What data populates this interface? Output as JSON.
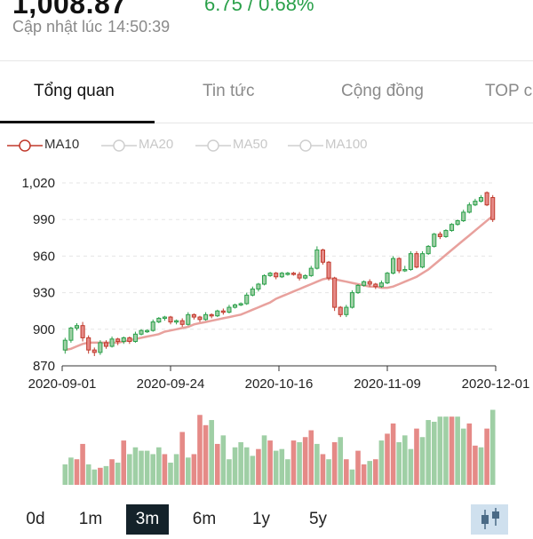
{
  "header": {
    "price": "1,008.87",
    "change": "6.75 / 0.68%",
    "updated_label": "Cập nhật lúc",
    "updated_time": "14:50:39"
  },
  "tabs": [
    {
      "label": "Tổng quan",
      "active": true
    },
    {
      "label": "Tin tức",
      "active": false
    },
    {
      "label": "Cộng đồng",
      "active": false
    },
    {
      "label": "TOP c",
      "active": false
    }
  ],
  "legend": [
    {
      "label": "MA10",
      "active": true,
      "color": "#c0392b"
    },
    {
      "label": "MA20",
      "active": false,
      "color": "#c8c8c8"
    },
    {
      "label": "MA50",
      "active": false,
      "color": "#c8c8c8"
    },
    {
      "label": "MA100",
      "active": false,
      "color": "#c8c8c8"
    }
  ],
  "timeframes": [
    {
      "label": "0d",
      "active": false
    },
    {
      "label": "1m",
      "active": false
    },
    {
      "label": "3m",
      "active": true
    },
    {
      "label": "6m",
      "active": false
    },
    {
      "label": "1y",
      "active": false
    },
    {
      "label": "5y",
      "active": false
    }
  ],
  "chart_toggle_icon": "candlestick-icon",
  "colors": {
    "up": "#2aa04a",
    "up_fill": "#9fcfa5",
    "down": "#c0392b",
    "down_fill": "#e58a87",
    "ma": "#e8a19d",
    "grid": "#e5e5e5"
  },
  "chart_data": {
    "type": "candlestick",
    "ylim": [
      870,
      1020
    ],
    "y_ticks": [
      "1,020",
      "990",
      "960",
      "930",
      "900",
      "870"
    ],
    "x_ticks": [
      "2020-09-01",
      "2020-09-24",
      "2020-10-16",
      "2020-11-09",
      "2020-12-01"
    ],
    "ma_label": "MA10",
    "candles": [
      [
        883,
        891,
        880,
        893
      ],
      [
        891,
        901,
        889,
        902
      ],
      [
        901,
        903,
        899,
        905
      ],
      [
        903,
        893,
        890,
        906
      ],
      [
        893,
        883,
        880,
        895
      ],
      [
        883,
        881,
        878,
        885
      ],
      [
        881,
        889,
        879,
        891
      ],
      [
        889,
        886,
        884,
        891
      ],
      [
        886,
        892,
        885,
        894
      ],
      [
        892,
        890,
        887,
        893
      ],
      [
        890,
        893,
        888,
        894
      ],
      [
        893,
        890,
        888,
        894
      ],
      [
        890,
        896,
        889,
        898
      ],
      [
        896,
        899,
        895,
        900
      ],
      [
        899,
        899,
        897,
        900
      ],
      [
        899,
        906,
        898,
        908
      ],
      [
        906,
        909,
        905,
        910
      ],
      [
        909,
        910,
        907,
        911
      ],
      [
        910,
        906,
        904,
        911
      ],
      [
        906,
        907,
        904,
        908
      ],
      [
        907,
        904,
        902,
        909
      ],
      [
        904,
        912,
        903,
        914
      ],
      [
        912,
        910,
        908,
        913
      ],
      [
        910,
        908,
        906,
        911
      ],
      [
        908,
        912,
        907,
        914
      ],
      [
        912,
        911,
        909,
        913
      ],
      [
        911,
        915,
        910,
        916
      ],
      [
        915,
        914,
        912,
        917
      ],
      [
        914,
        918,
        913,
        920
      ],
      [
        918,
        920,
        917,
        921
      ],
      [
        920,
        921,
        919,
        922
      ],
      [
        921,
        928,
        920,
        930
      ],
      [
        928,
        933,
        927,
        935
      ],
      [
        933,
        937,
        931,
        938
      ],
      [
        937,
        944,
        936,
        945
      ],
      [
        944,
        946,
        943,
        947
      ],
      [
        946,
        943,
        941,
        947
      ],
      [
        943,
        946,
        942,
        947
      ],
      [
        946,
        946,
        944,
        947
      ],
      [
        946,
        945,
        944,
        947
      ],
      [
        945,
        942,
        940,
        947
      ],
      [
        942,
        944,
        941,
        945
      ],
      [
        944,
        950,
        943,
        952
      ],
      [
        950,
        965,
        949,
        968
      ],
      [
        965,
        955,
        953,
        966
      ],
      [
        955,
        942,
        940,
        956
      ],
      [
        942,
        918,
        915,
        943
      ],
      [
        918,
        912,
        910,
        919
      ],
      [
        912,
        918,
        910,
        920
      ],
      [
        918,
        930,
        917,
        932
      ],
      [
        930,
        936,
        929,
        937
      ],
      [
        936,
        939,
        935,
        940
      ],
      [
        939,
        937,
        935,
        941
      ],
      [
        937,
        935,
        933,
        938
      ],
      [
        935,
        938,
        934,
        940
      ],
      [
        938,
        946,
        937,
        947
      ],
      [
        946,
        958,
        945,
        960
      ],
      [
        958,
        948,
        946,
        959
      ],
      [
        948,
        949,
        947,
        952
      ],
      [
        949,
        962,
        948,
        964
      ],
      [
        962,
        951,
        950,
        964
      ],
      [
        951,
        962,
        950,
        964
      ],
      [
        962,
        968,
        961,
        969
      ],
      [
        968,
        978,
        967,
        979
      ],
      [
        978,
        976,
        974,
        980
      ],
      [
        976,
        981,
        975,
        982
      ],
      [
        981,
        986,
        980,
        987
      ],
      [
        986,
        989,
        985,
        990
      ],
      [
        989,
        996,
        988,
        998
      ],
      [
        996,
        1002,
        995,
        1004
      ],
      [
        1002,
        1005,
        1001,
        1007
      ],
      [
        1005,
        1008,
        1004,
        1010
      ],
      [
        1012,
        1002,
        1001,
        1013
      ],
      [
        1008,
        990,
        988,
        1010
      ]
    ],
    "ma10": [
      883,
      884,
      886,
      888,
      889,
      889,
      889,
      889,
      889,
      889,
      890,
      891,
      892,
      893,
      894,
      895,
      896,
      898,
      899,
      900,
      901,
      902,
      904,
      905,
      906,
      907,
      908,
      909,
      910,
      911,
      912,
      914,
      916,
      918,
      920,
      922,
      925,
      927,
      929,
      931,
      933,
      935,
      937,
      939,
      941,
      942,
      941,
      940,
      939,
      938,
      937,
      936,
      935,
      935,
      934,
      934,
      935,
      937,
      939,
      941,
      943,
      946,
      949,
      953,
      957,
      961,
      965,
      969,
      973,
      977,
      981,
      985,
      989,
      993
    ],
    "volume": [
      0.24,
      0.32,
      0.3,
      0.48,
      0.24,
      0.18,
      0.2,
      0.22,
      0.3,
      0.26,
      0.52,
      0.36,
      0.44,
      0.4,
      0.4,
      0.36,
      0.44,
      0.36,
      0.26,
      0.36,
      0.62,
      0.32,
      0.36,
      0.82,
      0.7,
      0.76,
      0.48,
      0.58,
      0.3,
      0.44,
      0.5,
      0.44,
      0.34,
      0.42,
      0.58,
      0.52,
      0.4,
      0.42,
      0.3,
      0.52,
      0.5,
      0.56,
      0.64,
      0.48,
      0.36,
      0.3,
      0.5,
      0.56,
      0.3,
      0.18,
      0.4,
      0.24,
      0.28,
      0.3,
      0.52,
      0.6,
      0.72,
      0.5,
      0.58,
      0.42,
      0.66,
      0.56,
      0.76,
      0.74,
      0.8,
      0.8,
      0.8,
      0.8,
      0.66,
      0.72,
      0.46,
      0.44,
      0.66,
      0.88
    ],
    "volume_colors": [
      "up",
      "up",
      "down",
      "down",
      "up",
      "up",
      "down",
      "up",
      "down",
      "up",
      "down",
      "up",
      "up",
      "up",
      "up",
      "up",
      "up",
      "down",
      "up",
      "up",
      "down",
      "up",
      "down",
      "down",
      "down",
      "up",
      "down",
      "up",
      "up",
      "up",
      "up",
      "up",
      "up",
      "down",
      "up",
      "down",
      "up",
      "up",
      "up",
      "down",
      "up",
      "down",
      "down",
      "up",
      "down",
      "up",
      "down",
      "up",
      "down",
      "up",
      "down",
      "down",
      "up",
      "down",
      "up",
      "down",
      "down",
      "up",
      "up",
      "up",
      "down",
      "up",
      "up",
      "up",
      "up",
      "up",
      "down",
      "up",
      "up",
      "down",
      "down",
      "up",
      "down",
      "up"
    ]
  }
}
